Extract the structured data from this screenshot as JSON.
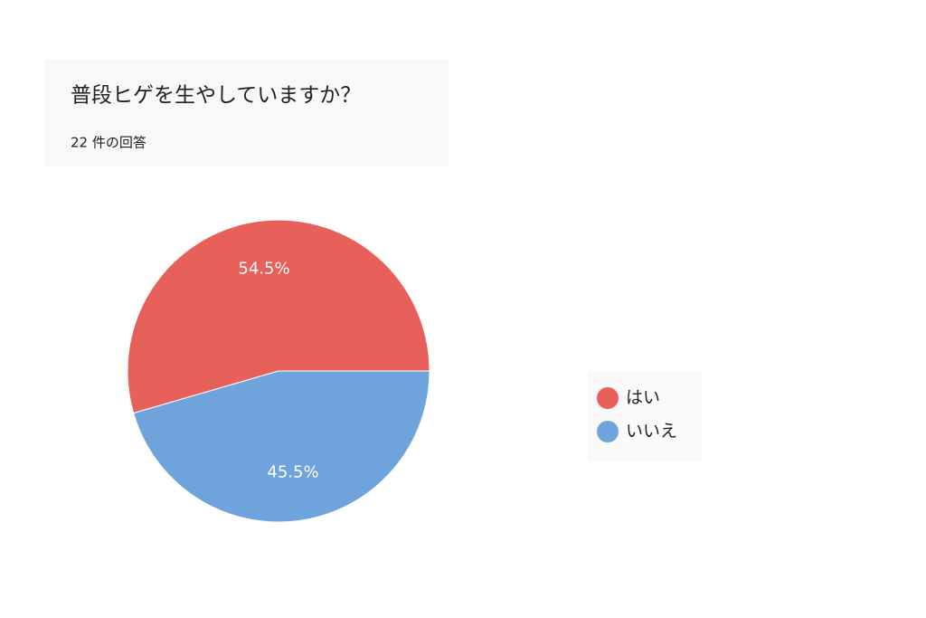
{
  "chart_data": {
    "type": "pie",
    "title": "普段ヒゲを生やしていますか？",
    "subtitle": "22 件の回答",
    "categories": [
      "はい",
      "いいえ"
    ],
    "values": [
      54.5,
      45.5
    ],
    "value_labels": [
      "54.5%",
      "45.5%"
    ],
    "colors": [
      "#e8605a",
      "#6fa3dc"
    ],
    "legend": "right"
  }
}
